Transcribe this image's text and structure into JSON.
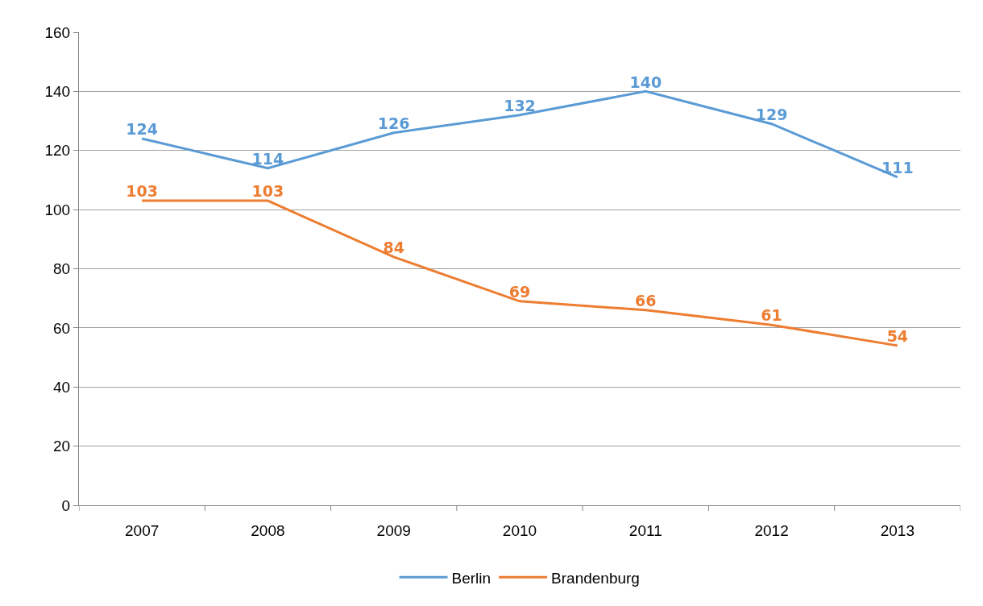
{
  "chart_data": {
    "type": "line",
    "categories": [
      "2007",
      "2008",
      "2009",
      "2010",
      "2011",
      "2012",
      "2013"
    ],
    "series": [
      {
        "name": "Berlin",
        "color": "#5b9bd5",
        "values": [
          124,
          114,
          126,
          132,
          140,
          129,
          111
        ]
      },
      {
        "name": "Brandenburg",
        "color": "#ed7d31",
        "values": [
          103,
          103,
          84,
          69,
          66,
          61,
          54
        ]
      }
    ],
    "ylim": [
      0,
      160
    ],
    "yticks": [
      0,
      20,
      40,
      60,
      80,
      100,
      120,
      140,
      160
    ],
    "grid": "y",
    "legend": "bottom",
    "marker": "none",
    "line_style": "solid",
    "data_labels": true
  }
}
